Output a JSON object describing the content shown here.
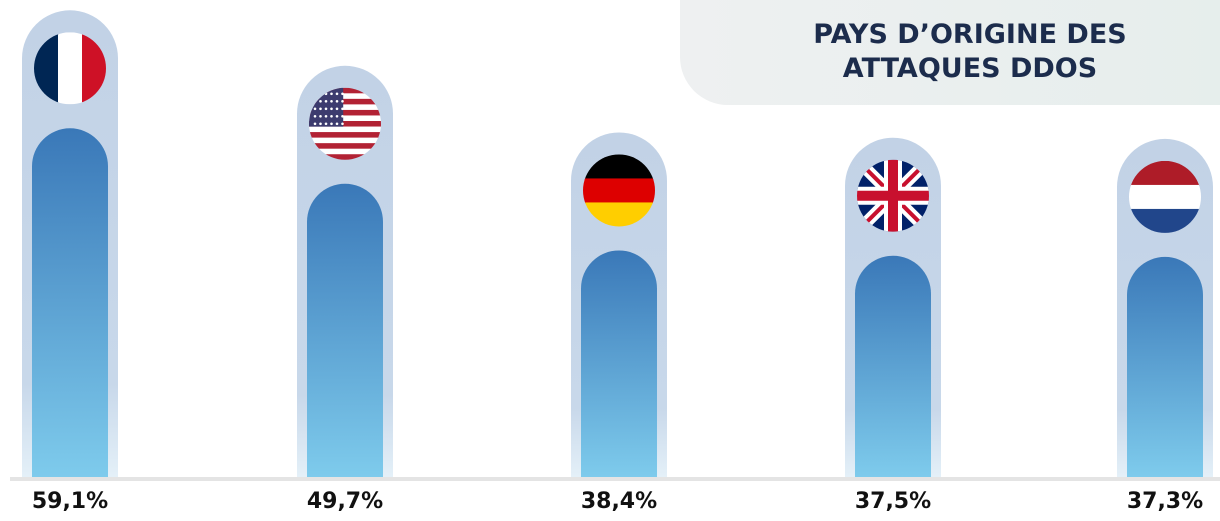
{
  "chart_data": {
    "type": "bar",
    "title": "PAYS D’ORIGINE DES ATTAQUES DDOS",
    "values": [
      59.1,
      49.7,
      38.4,
      37.5,
      37.3
    ],
    "value_labels": [
      "59,1%",
      "49,7%",
      "38,4%",
      "37,5%",
      "37,3%"
    ],
    "color": "#3a78b8"
  }
}
